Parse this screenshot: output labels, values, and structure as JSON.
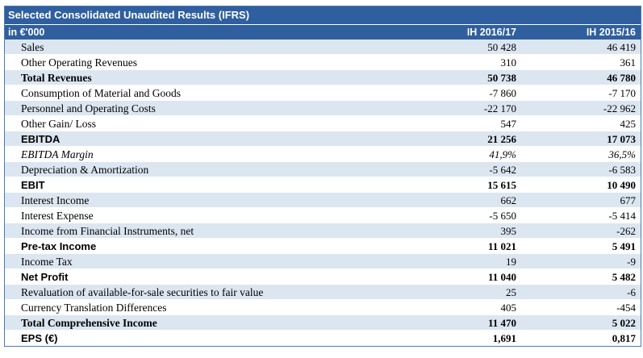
{
  "table": {
    "title": "Selected Consolidated Unaudited Results (IFRS)",
    "header": {
      "label": "in €'000",
      "col1": "IH 2016/17",
      "col2": "IH 2015/16"
    },
    "rows": [
      {
        "label": "Sales",
        "v1": "50 428",
        "v2": "46 419",
        "style": "normal"
      },
      {
        "label": "Other Operating Revenues",
        "v1": "310",
        "v2": "361",
        "style": "normal"
      },
      {
        "label": "Total Revenues",
        "v1": "50 738",
        "v2": "46 780",
        "style": "bold"
      },
      {
        "label": "Consumption of Material and Goods",
        "v1": "-7 860",
        "v2": "-7 170",
        "style": "normal"
      },
      {
        "label": "Personnel and Operating Costs",
        "v1": "-22 170",
        "v2": "-22 962",
        "style": "normal"
      },
      {
        "label": "Other Gain/ Loss",
        "v1": "547",
        "v2": "425",
        "style": "normal"
      },
      {
        "label": "EBITDA",
        "v1": "21 256",
        "v2": "17 073",
        "style": "bold sans"
      },
      {
        "label": "EBITDA Margin",
        "v1": "41,9%",
        "v2": "36,5%",
        "style": "italic"
      },
      {
        "label": "Depreciation & Amortization",
        "v1": "-5 642",
        "v2": "-6 583",
        "style": "normal"
      },
      {
        "label": "EBIT",
        "v1": "15 615",
        "v2": "10 490",
        "style": "bold sans"
      },
      {
        "label": "Interest Income",
        "v1": "662",
        "v2": "677",
        "style": "normal"
      },
      {
        "label": "Interest Expense",
        "v1": "-5 650",
        "v2": "-5 414",
        "style": "normal"
      },
      {
        "label": "Income from Financial Instruments, net",
        "v1": "395",
        "v2": "-262",
        "style": "normal"
      },
      {
        "label": "Pre-tax Income",
        "v1": "11 021",
        "v2": "5 491",
        "style": "bold sans"
      },
      {
        "label": "Income Tax",
        "v1": "19",
        "v2": "-9",
        "style": "normal"
      },
      {
        "label": "Net Profit",
        "v1": "11 040",
        "v2": "5 482",
        "style": "bold sans"
      },
      {
        "label": "Revaluation of available-for-sale securities to fair value",
        "v1": "25",
        "v2": "-6",
        "style": "normal"
      },
      {
        "label": "Currency Translation Differences",
        "v1": "405",
        "v2": "-454",
        "style": "normal"
      },
      {
        "label": "Total Comprehensive Income",
        "v1": "11 470",
        "v2": "5 022",
        "style": "bold"
      },
      {
        "label": "EPS (€)",
        "v1": "1,691",
        "v2": "0,817",
        "style": "bold sans"
      }
    ]
  }
}
